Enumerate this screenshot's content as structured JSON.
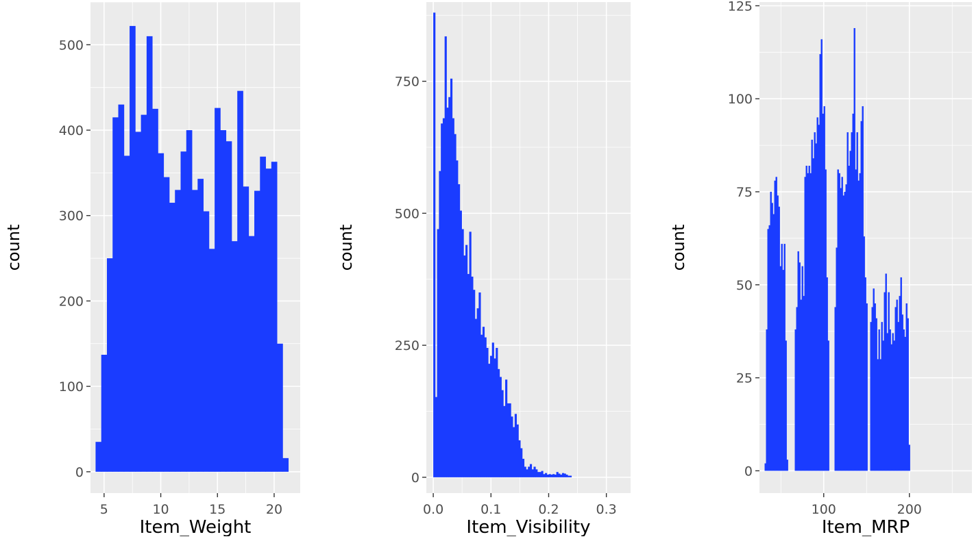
{
  "chart_data": [
    {
      "type": "bar",
      "xlabel": "Item_Weight",
      "ylabel": "count",
      "xlim": [
        3.8,
        22.3
      ],
      "ylim": [
        -25,
        550
      ],
      "xticks": [
        5,
        10,
        15,
        20
      ],
      "yticks": [
        0,
        100,
        200,
        300,
        400,
        500
      ],
      "grid": true,
      "color": "#1a3cff",
      "panel_bg": "#ebebeb",
      "bin_width": 0.5,
      "bin_start": 4.25,
      "values": [
        35,
        137,
        250,
        415,
        430,
        370,
        522,
        398,
        418,
        510,
        425,
        373,
        345,
        315,
        330,
        375,
        400,
        330,
        343,
        305,
        261,
        426,
        400,
        387,
        270,
        446,
        334,
        276,
        329,
        369,
        355,
        363,
        150,
        16
      ]
    },
    {
      "type": "bar",
      "xlabel": "Item_Visibility",
      "ylabel": "count",
      "xlim": [
        -0.012,
        0.342
      ],
      "ylim": [
        -30,
        900
      ],
      "xticks": [
        0.0,
        0.1,
        0.2,
        0.3
      ],
      "yticks": [
        0,
        250,
        500,
        750
      ],
      "grid": true,
      "color": "#1a3cff",
      "panel_bg": "#ebebeb",
      "bin_width": 0.00328,
      "bin_start": 0,
      "values": [
        880,
        152,
        470,
        580,
        670,
        680,
        835,
        700,
        720,
        755,
        680,
        650,
        600,
        555,
        505,
        470,
        420,
        440,
        385,
        465,
        380,
        355,
        300,
        320,
        350,
        270,
        285,
        265,
        245,
        215,
        230,
        255,
        225,
        245,
        205,
        190,
        165,
        135,
        185,
        140,
        140,
        115,
        95,
        120,
        100,
        70,
        55,
        35,
        20,
        15,
        20,
        25,
        15,
        20,
        15,
        10,
        10,
        12,
        6,
        8,
        5,
        6,
        5,
        6,
        5,
        10,
        7,
        5,
        8,
        7,
        5,
        3,
        3
      ]
    },
    {
      "type": "bar",
      "xlabel": "Item_MRP",
      "ylabel": "count",
      "xlim": [
        25,
        273
      ],
      "ylim": [
        -6,
        126
      ],
      "xticks": [
        100,
        200
      ],
      "yticks": [
        0,
        25,
        50,
        75,
        100,
        125
      ],
      "grid": true,
      "color": "#1a3cff",
      "panel_bg": "#ebebeb",
      "bin_width": 1.6,
      "bin_start": 31,
      "values": [
        2,
        38,
        65,
        66,
        75,
        72,
        69,
        78,
        79,
        74,
        71,
        55,
        61,
        54,
        61,
        35,
        3,
        0,
        0,
        0,
        0,
        0,
        38,
        44,
        59,
        56,
        46,
        55,
        47,
        79,
        82,
        80,
        82,
        80,
        89,
        84,
        91,
        88,
        95,
        93,
        112,
        116,
        96,
        98,
        81,
        52,
        35,
        0,
        0,
        0,
        0,
        44,
        60,
        81,
        80,
        76,
        79,
        74,
        75,
        77,
        91,
        82,
        86,
        91,
        96,
        119,
        81,
        91,
        78,
        80,
        94,
        98,
        63,
        52,
        45,
        0,
        0,
        40,
        44,
        49,
        45,
        41,
        30,
        38,
        30,
        40,
        35,
        48,
        53,
        37,
        48,
        38,
        34,
        37,
        35,
        44,
        46,
        40,
        47,
        52,
        42,
        38,
        36,
        45,
        41,
        7
      ]
    }
  ]
}
